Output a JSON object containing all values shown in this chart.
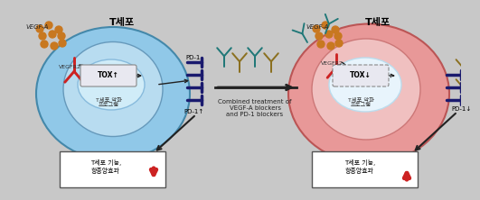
{
  "bg_color": "#c8c8c8",
  "title_left": "T세포",
  "title_right": "T세포",
  "label_vegfa": "VEGF-A",
  "label_vegfr2": "VEGFR2",
  "label_pd1_top": "PD-1",
  "label_tox_left": "TOX↑",
  "label_tox_right": "TOX↓",
  "label_program": "T세포 악화\n프로그램",
  "label_result": "T세포 기능,\n항종양효과",
  "label_pd1_up": "PD-1↑",
  "label_pd1_down": "PD-1↓",
  "combined_text": "Combined treatment of\nVEGF-A blockers\nand PD-1 blockers",
  "cell_outer_left_color": "#90c8e8",
  "cell_inner_left_color": "#b8dcf0",
  "cell_outer_right_color": "#e89898",
  "cell_inner_right_color": "#f0c0c0",
  "nucleus_left_color": "#d0ecf8",
  "nucleus_right_color": "#e8f4fc",
  "vegfa_dot_color": "#c87820",
  "vegfr2_color": "#cc2222",
  "pd1_arm_color": "#1a1a6e",
  "blocker_teal": "#207878",
  "blocker_gold": "#8b7020",
  "arrow_color": "#222222",
  "result_box_color": "#ffffff",
  "red_color": "#cc2222",
  "tox_box_color": "#e8e8f0",
  "tox_border_color": "#888888",
  "line_color": "#555555"
}
